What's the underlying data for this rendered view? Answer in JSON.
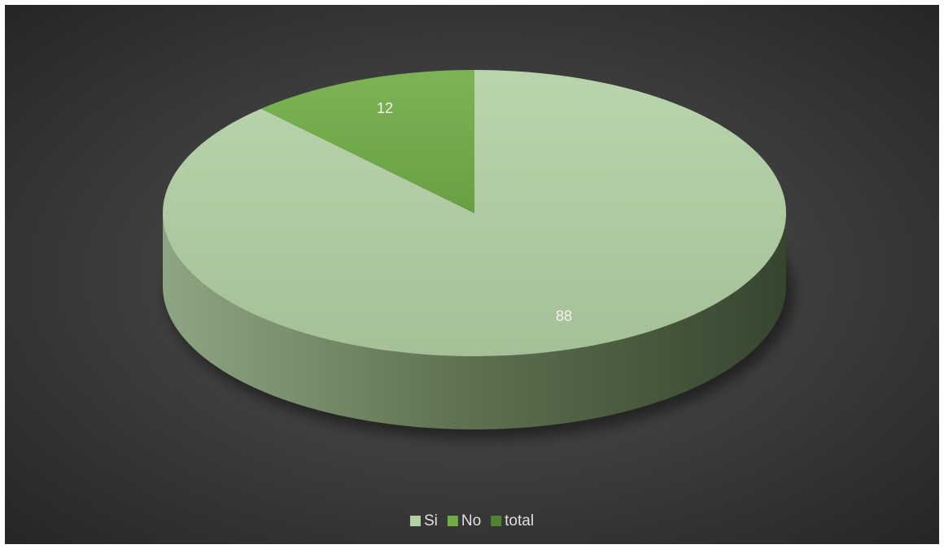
{
  "chart_data": {
    "type": "pie",
    "view": "3d",
    "categories": [
      "Si",
      "No",
      "total"
    ],
    "values": [
      88,
      12,
      0
    ],
    "colors": [
      "#b3d1a5",
      "#70ad47",
      "#548235"
    ],
    "legend": "bottom"
  }
}
